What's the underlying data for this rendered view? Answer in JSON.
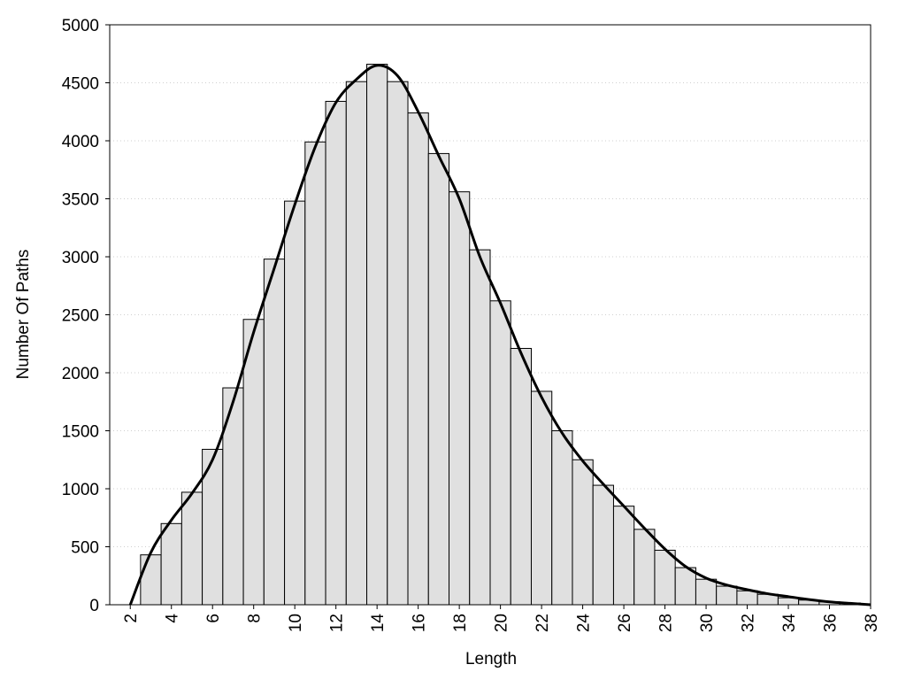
{
  "chart_data": {
    "type": "histogram",
    "x_label": "Length",
    "y_label": "Number Of Paths",
    "bins": [
      2.5,
      3.5,
      4.5,
      5.5,
      6.5,
      7.5,
      8.5,
      9.5,
      10.5,
      11.5,
      12.5,
      13.5,
      14.5,
      15.5,
      16.5,
      17.5,
      18.5,
      19.5,
      20.5,
      21.5,
      22.5,
      23.5,
      24.5,
      25.5,
      26.5,
      27.5,
      28.5,
      29.5,
      30.5,
      31.5,
      32.5,
      33.5,
      34.5,
      35.5,
      36.5,
      37.5
    ],
    "values": [
      430,
      700,
      970,
      1340,
      1870,
      2460,
      2980,
      3480,
      3990,
      4340,
      4510,
      4660,
      4510,
      4240,
      3890,
      3560,
      3060,
      2620,
      2210,
      1840,
      1500,
      1250,
      1030,
      850,
      650,
      470,
      320,
      220,
      160,
      120,
      90,
      60,
      40,
      25,
      15
    ],
    "color": "#e0e0e0",
    "line": {
      "color": "#000000",
      "x": [
        2,
        3,
        4,
        5,
        6,
        7,
        8,
        9,
        10,
        11,
        12,
        13,
        14,
        15,
        16,
        17,
        18,
        19,
        20,
        21,
        22,
        23,
        24,
        25,
        26,
        27,
        28,
        29,
        30,
        31,
        32,
        33,
        34,
        35,
        36,
        37,
        38
      ],
      "values": [
        0,
        450,
        730,
        960,
        1250,
        1750,
        2350,
        2900,
        3450,
        3950,
        4330,
        4530,
        4650,
        4560,
        4250,
        3870,
        3500,
        3000,
        2600,
        2170,
        1790,
        1480,
        1240,
        1040,
        850,
        660,
        480,
        330,
        230,
        170,
        130,
        95,
        70,
        45,
        25,
        12,
        0
      ]
    },
    "xlim": [
      1,
      38
    ],
    "ylim": [
      0,
      5000
    ],
    "xticks": [
      2,
      4,
      6,
      8,
      10,
      12,
      14,
      16,
      18,
      20,
      22,
      24,
      26,
      28,
      30,
      32,
      34,
      36,
      38
    ],
    "yticks": [
      0,
      500,
      1000,
      1500,
      2000,
      2500,
      3000,
      3500,
      4000,
      4500,
      5000
    ],
    "grid": true
  }
}
